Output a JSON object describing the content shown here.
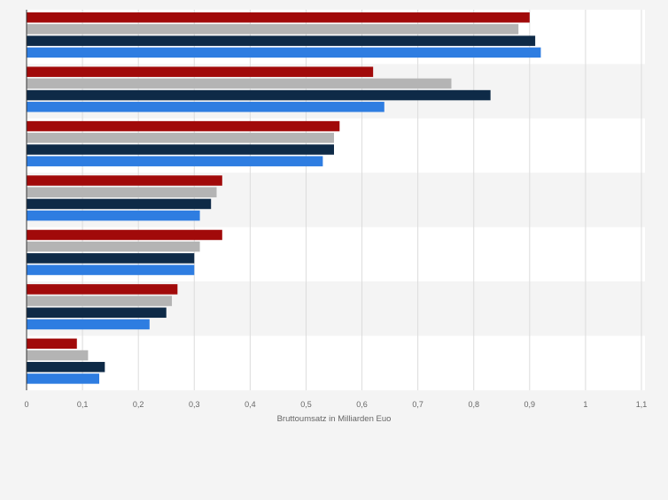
{
  "chart_data": {
    "type": "bar",
    "orientation": "horizontal",
    "categories": [
      "",
      "",
      "",
      "",
      "",
      "",
      ""
    ],
    "series": [
      {
        "color": "#a10a0a",
        "values": [
          0.9,
          0.62,
          0.56,
          0.35,
          0.35,
          0.27,
          0.09
        ]
      },
      {
        "color": "#b4b4b4",
        "values": [
          0.88,
          0.76,
          0.55,
          0.34,
          0.31,
          0.26,
          0.11
        ]
      },
      {
        "color": "#0e2a47",
        "values": [
          0.91,
          0.83,
          0.55,
          0.33,
          0.3,
          0.25,
          0.14
        ]
      },
      {
        "color": "#2e7de1",
        "values": [
          0.92,
          0.64,
          0.53,
          0.31,
          0.3,
          0.22,
          0.13
        ]
      }
    ],
    "xlabel": "Bruttoumsatz in Milliarden Euo",
    "ylabel": "",
    "xlim": [
      0,
      1.1
    ],
    "xticks": [
      "0",
      "0,1",
      "0,2",
      "0,3",
      "0,4",
      "0,5",
      "0,6",
      "0,7",
      "0,8",
      "0,9",
      "1",
      "1,1"
    ],
    "grid": true,
    "legend": "none"
  }
}
